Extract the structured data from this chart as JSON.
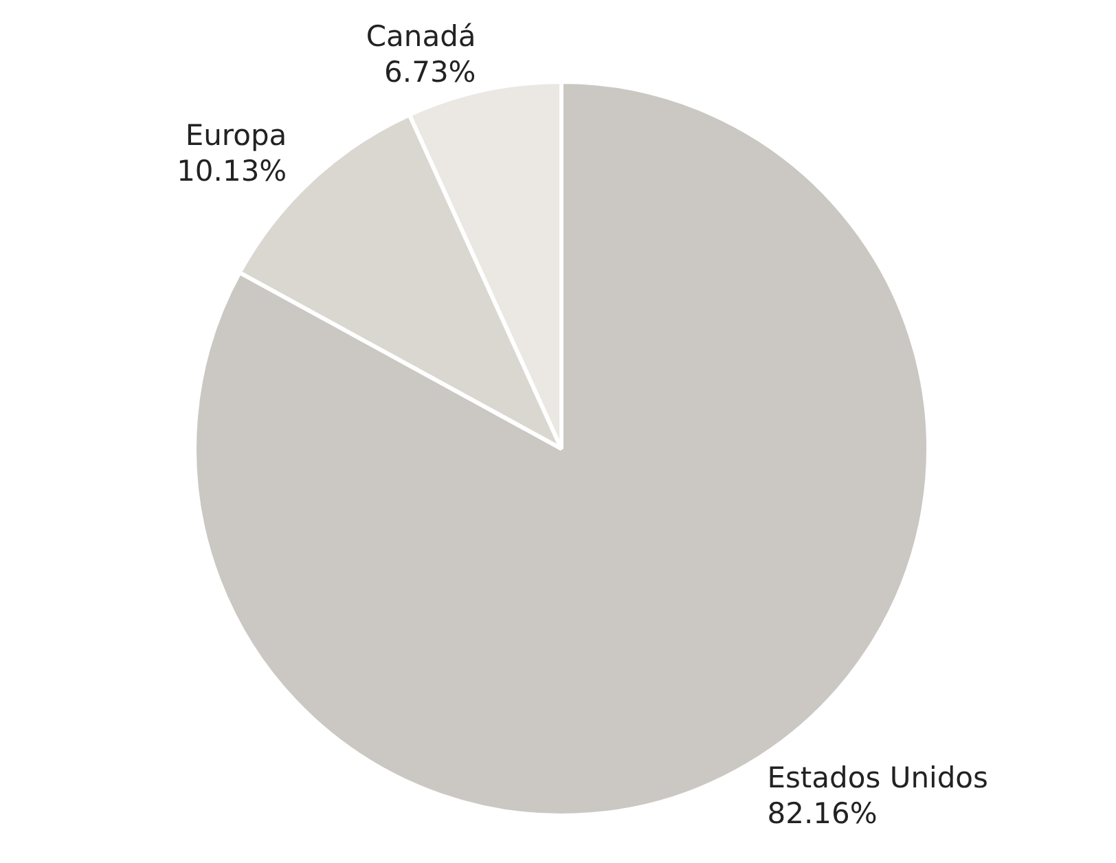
{
  "chart_data": {
    "type": "pie",
    "categories": [
      "Estados Unidos",
      "Europa",
      "Canadá"
    ],
    "values": [
      82.16,
      10.13,
      6.73
    ],
    "colors": [
      "#cbc8c3",
      "#dad7d1",
      "#ebe7e2"
    ],
    "value_labels": [
      "82.16%",
      "10.13%",
      "6.73%"
    ]
  }
}
